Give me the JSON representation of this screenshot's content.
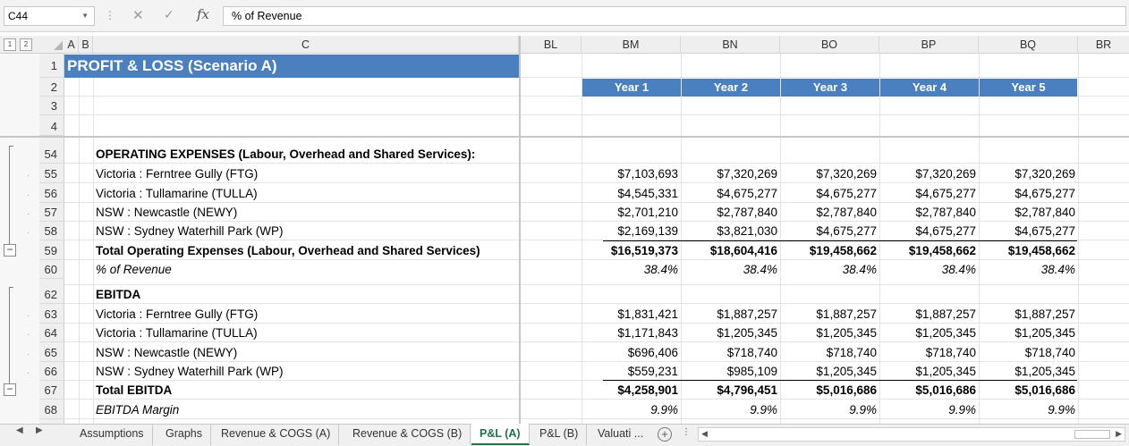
{
  "formula_bar": {
    "name_box": "C44",
    "content": "% of Revenue"
  },
  "outline_levels": [
    "1",
    "2"
  ],
  "columns": [
    "A",
    "B",
    "C",
    "BL",
    "BM",
    "BN",
    "BO",
    "BP",
    "BQ",
    "BR"
  ],
  "title": "PROFIT & LOSS (Scenario A)",
  "years": [
    "Year 1",
    "Year 2",
    "Year 3",
    "Year 4",
    "Year 5"
  ],
  "row_numbers": {
    "r1": "1",
    "r2": "2",
    "r3": "3",
    "r4": "4",
    "r54": "54",
    "r55": "55",
    "r56": "56",
    "r57": "57",
    "r58": "58",
    "r59": "59",
    "r60": "60",
    "r62": "62",
    "r63": "63",
    "r64": "64",
    "r65": "65",
    "r66": "66",
    "r67": "67",
    "r68": "68"
  },
  "opex": {
    "header": "OPERATING EXPENSES (Labour, Overhead and Shared Services):",
    "rows": [
      {
        "label": "Victoria : Ferntree Gully (FTG)",
        "values": [
          "$7,103,693",
          "$7,320,269",
          "$7,320,269",
          "$7,320,269",
          "$7,320,269"
        ]
      },
      {
        "label": "Victoria : Tullamarine (TULLA)",
        "values": [
          "$4,545,331",
          "$4,675,277",
          "$4,675,277",
          "$4,675,277",
          "$4,675,277"
        ]
      },
      {
        "label": "NSW : Newcastle (NEWY)",
        "values": [
          "$2,701,210",
          "$2,787,840",
          "$2,787,840",
          "$2,787,840",
          "$2,787,840"
        ]
      },
      {
        "label": "NSW : Sydney Waterhill Park (WP)",
        "values": [
          "$2,169,139",
          "$3,821,030",
          "$4,675,277",
          "$4,675,277",
          "$4,675,277"
        ]
      }
    ],
    "total": {
      "label": "Total Operating Expenses (Labour, Overhead and Shared Services)",
      "values": [
        "$16,519,373",
        "$18,604,416",
        "$19,458,662",
        "$19,458,662",
        "$19,458,662"
      ]
    },
    "pct": {
      "label": "% of Revenue",
      "values": [
        "38.4%",
        "38.4%",
        "38.4%",
        "38.4%",
        "38.4%"
      ]
    }
  },
  "ebitda": {
    "header": "EBITDA",
    "rows": [
      {
        "label": "Victoria : Ferntree Gully (FTG)",
        "values": [
          "$1,831,421",
          "$1,887,257",
          "$1,887,257",
          "$1,887,257",
          "$1,887,257"
        ]
      },
      {
        "label": "Victoria : Tullamarine (TULLA)",
        "values": [
          "$1,171,843",
          "$1,205,345",
          "$1,205,345",
          "$1,205,345",
          "$1,205,345"
        ]
      },
      {
        "label": "NSW : Newcastle (NEWY)",
        "values": [
          "$696,406",
          "$718,740",
          "$718,740",
          "$718,740",
          "$718,740"
        ]
      },
      {
        "label": "NSW : Sydney Waterhill Park (WP)",
        "values": [
          "$559,231",
          "$985,109",
          "$1,205,345",
          "$1,205,345",
          "$1,205,345"
        ]
      }
    ],
    "total": {
      "label": "Total EBITDA",
      "values": [
        "$4,258,901",
        "$4,796,451",
        "$5,016,686",
        "$5,016,686",
        "$5,016,686"
      ]
    },
    "margin": {
      "label": "EBITDA Margin",
      "values": [
        "9.9%",
        "9.9%",
        "9.9%",
        "9.9%",
        "9.9%"
      ]
    }
  },
  "tabs": [
    "Assumptions",
    "Graphs",
    "Revenue & COGS (A)",
    "Revenue & COGS (B)",
    "P&L (A)",
    "P&L (B)",
    "Valuati ..."
  ],
  "colors": {
    "header_blue": "#4a7fc0",
    "active_tab": "#217346"
  }
}
